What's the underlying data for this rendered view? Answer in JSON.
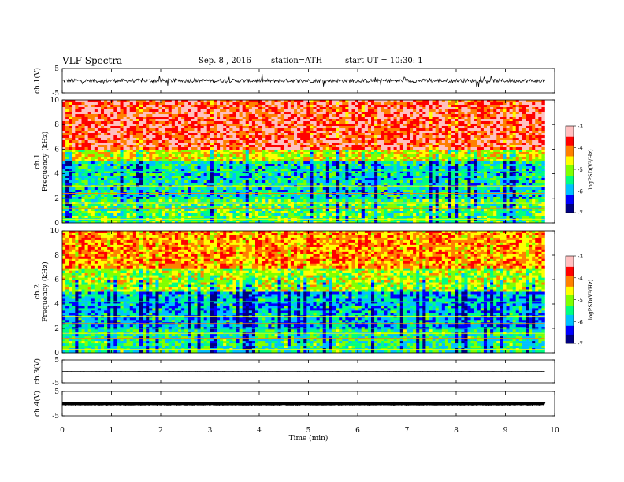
{
  "header": {
    "title": "VLF Spectra",
    "date": "Sep. 8 , 2016",
    "station": "station=ATH",
    "start": "start UT = 10:30: 1"
  },
  "colorbar": {
    "label": "logPSD(V²/Hz)",
    "ticks": [
      "-3",
      "-4",
      "-5",
      "-6",
      "-7"
    ],
    "colors": [
      "#000080",
      "#0000ff",
      "#00c0ff",
      "#00ff80",
      "#80ff00",
      "#ffff00",
      "#ff8000",
      "#ff0000",
      "#ffc0c0"
    ]
  },
  "chart_data": [
    {
      "type": "line",
      "panel": "ch.1 waveform",
      "ylabel": "ch.1(V)",
      "ylim": [
        -5,
        5
      ],
      "yticks": [
        "5",
        "-5"
      ],
      "description_values": {
        "mean_level_V": 0,
        "approx_amplitude_V": 1.5
      }
    },
    {
      "type": "heatmap",
      "panel": "ch.1 spectrogram",
      "ylabel": "ch.1 Frequency (kHz)",
      "ylim": [
        0,
        10
      ],
      "yticks": [
        "0",
        "2",
        "4",
        "6",
        "8",
        "10"
      ],
      "bands": [
        {
          "f_from": 6.0,
          "f_to": 10.0,
          "logPSD": -3.6
        },
        {
          "f_from": 5.0,
          "f_to": 6.0,
          "logPSD": -4.6
        },
        {
          "f_from": 2.0,
          "f_to": 5.0,
          "logPSD": -5.6
        },
        {
          "f_from": 0.0,
          "f_to": 2.0,
          "logPSD": -5.2
        }
      ]
    },
    {
      "type": "heatmap",
      "panel": "ch.2 spectrogram",
      "ylabel": "ch.2 Frequency (kHz)",
      "ylim": [
        0,
        10
      ],
      "yticks": [
        "0",
        "2",
        "4",
        "6",
        "8",
        "10"
      ],
      "bands": [
        {
          "f_from": 7.0,
          "f_to": 10.0,
          "logPSD": -4.1
        },
        {
          "f_from": 5.0,
          "f_to": 7.0,
          "logPSD": -4.8
        },
        {
          "f_from": 2.0,
          "f_to": 5.0,
          "logPSD": -5.8
        },
        {
          "f_from": 0.0,
          "f_to": 2.0,
          "logPSD": -5.4
        }
      ]
    },
    {
      "type": "line",
      "panel": "ch.3 waveform",
      "ylabel": "ch.3(V)",
      "ylim": [
        -5,
        5
      ],
      "yticks": [
        "5",
        "-5"
      ],
      "description_values": {
        "mean_level_V": 0,
        "approx_amplitude_V": 0.1
      }
    },
    {
      "type": "line",
      "panel": "ch.4 waveform",
      "ylabel": "ch.4(V)",
      "ylim": [
        -5,
        5
      ],
      "yticks": [
        "5",
        "-5"
      ],
      "description_values": {
        "mean_level_V": 0,
        "approx_amplitude_V": 0.2
      }
    }
  ],
  "xaxis": {
    "label": "Time (min)",
    "xlim": [
      0,
      10
    ],
    "ticks": [
      "0",
      "1",
      "2",
      "3",
      "4",
      "5",
      "6",
      "7",
      "8",
      "9",
      "10"
    ],
    "data_end_min": 9.8
  }
}
